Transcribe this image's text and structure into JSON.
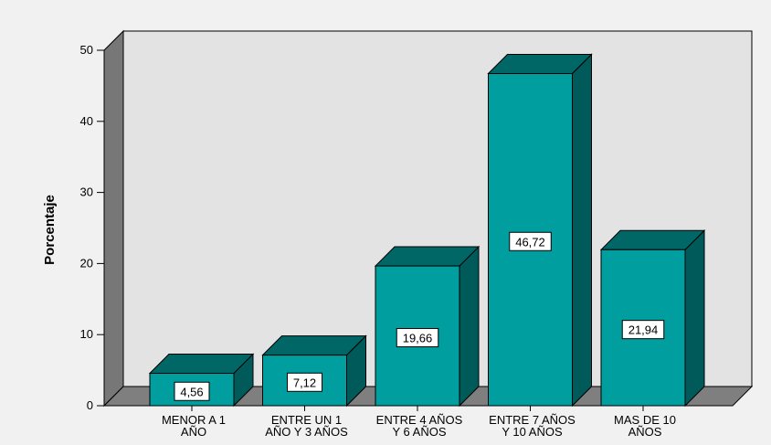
{
  "chart_data": {
    "type": "bar",
    "style": "3d",
    "categories": [
      [
        "MENOR A 1",
        "AÑO"
      ],
      [
        "ENTRE UN 1",
        "AÑO Y 3 AÑOS"
      ],
      [
        "ENTRE 4 AÑOS",
        "Y 6 AÑOS"
      ],
      [
        "ENTRE 7 AÑOS",
        "Y 10 AÑOS"
      ],
      [
        "MAS DE 10",
        "AÑOS"
      ]
    ],
    "values": [
      4.56,
      7.12,
      19.66,
      46.72,
      21.94
    ],
    "data_labels": [
      "4,56",
      "7,12",
      "19,66",
      "46,72",
      "21,94"
    ],
    "ylabel": "Porcentaje",
    "xlabel": "",
    "ylim": [
      0,
      50
    ],
    "yticks": [
      0,
      10,
      20,
      30,
      40,
      50
    ],
    "grid": false,
    "colors": {
      "bar_front": "#009e9e",
      "bar_top": "#006666",
      "bar_side": "#005a5a",
      "plot_back": "#e3e3e3",
      "plot_left_wall": "#777777",
      "plot_floor": "#7f7f7f",
      "background": "#f1f1f1"
    }
  }
}
